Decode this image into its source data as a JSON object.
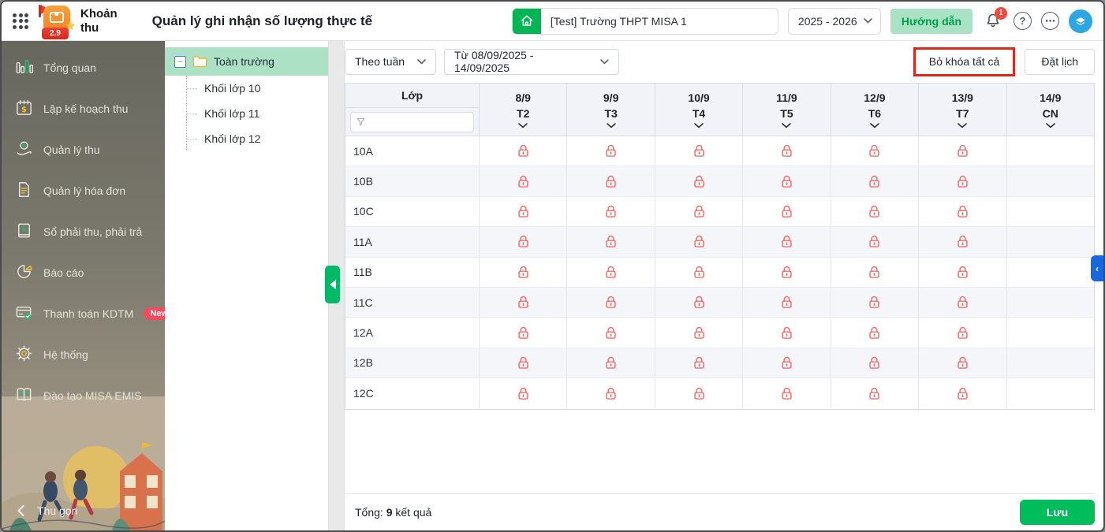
{
  "header": {
    "app_name_line1": "Khoản",
    "app_name_line2": "thu",
    "app_version": "2.9",
    "page_title": "Quản lý ghi nhận số lượng thực tế",
    "school_name": "[Test] Trường THPT MISA 1",
    "school_year": "2025 - 2026",
    "guide_button": "Hướng dẫn",
    "notification_count": "1",
    "more_glyph": "⋯",
    "help_glyph": "?"
  },
  "sidebar": {
    "items": [
      {
        "label": "Tổng quan",
        "icon": "bar-chart-icon"
      },
      {
        "label": "Lập kế hoạch thu",
        "icon": "calendar-money-icon"
      },
      {
        "label": "Quản lý thu",
        "icon": "hand-money-icon"
      },
      {
        "label": "Quản lý hóa đơn",
        "icon": "invoice-icon"
      },
      {
        "label": "Sổ phải thu, phải trả",
        "icon": "ledger-icon"
      },
      {
        "label": "Báo cáo",
        "icon": "pie-chart-icon"
      },
      {
        "label": "Thanh toán KDTM",
        "icon": "card-payment-icon",
        "badge": "New"
      },
      {
        "label": "Hệ thống",
        "icon": "gear-icon"
      },
      {
        "label": "Đào tạo MISA EMIS",
        "icon": "training-book-icon"
      }
    ],
    "collapse_label": "Thu gọn"
  },
  "tree": {
    "root": "Toàn trường",
    "children": [
      "Khối lớp 10",
      "Khối lớp 11",
      "Khối lớp 12"
    ]
  },
  "toolbar": {
    "period_filter": "Theo tuần",
    "date_range": "Từ 08/09/2025 - 14/09/2025",
    "unlock_all_button": "Bỏ khóa tất cả",
    "schedule_button": "Đặt lịch"
  },
  "table": {
    "class_column_header": "Lớp",
    "filter_placeholder": "",
    "date_columns": [
      {
        "date": "8/9",
        "day": "T2"
      },
      {
        "date": "9/9",
        "day": "T3"
      },
      {
        "date": "10/9",
        "day": "T4"
      },
      {
        "date": "11/9",
        "day": "T5"
      },
      {
        "date": "12/9",
        "day": "T6"
      },
      {
        "date": "13/9",
        "day": "T7"
      },
      {
        "date": "14/9",
        "day": "CN"
      }
    ],
    "rows": [
      {
        "class": "10A",
        "locks": [
          true,
          true,
          true,
          true,
          true,
          true,
          false
        ]
      },
      {
        "class": "10B",
        "locks": [
          true,
          true,
          true,
          true,
          true,
          true,
          false
        ]
      },
      {
        "class": "10C",
        "locks": [
          true,
          true,
          true,
          true,
          true,
          true,
          false
        ]
      },
      {
        "class": "11A",
        "locks": [
          true,
          true,
          true,
          true,
          true,
          true,
          false
        ]
      },
      {
        "class": "11B",
        "locks": [
          true,
          true,
          true,
          true,
          true,
          true,
          false
        ]
      },
      {
        "class": "11C",
        "locks": [
          true,
          true,
          true,
          true,
          true,
          true,
          false
        ]
      },
      {
        "class": "12A",
        "locks": [
          true,
          true,
          true,
          true,
          true,
          true,
          false
        ]
      },
      {
        "class": "12B",
        "locks": [
          true,
          true,
          true,
          true,
          true,
          true,
          false
        ]
      },
      {
        "class": "12C",
        "locks": [
          true,
          true,
          true,
          true,
          true,
          true,
          false
        ]
      }
    ]
  },
  "footer": {
    "total_label": "Tổng:",
    "total_value": "9",
    "total_unit": "kết quả",
    "save_button": "Lưu"
  },
  "colors": {
    "primary_green": "#00bd5c",
    "selected_tree_green": "#ace1c6",
    "guide_button_green": "#a9e2c4",
    "lock_red": "#f56c6c",
    "annotation_red": "#e0261b",
    "badge_red": "#f5483e",
    "new_badge_red": "#f8485e",
    "handle_blue": "#1768df",
    "avatar_blue": "#2da7e2"
  }
}
